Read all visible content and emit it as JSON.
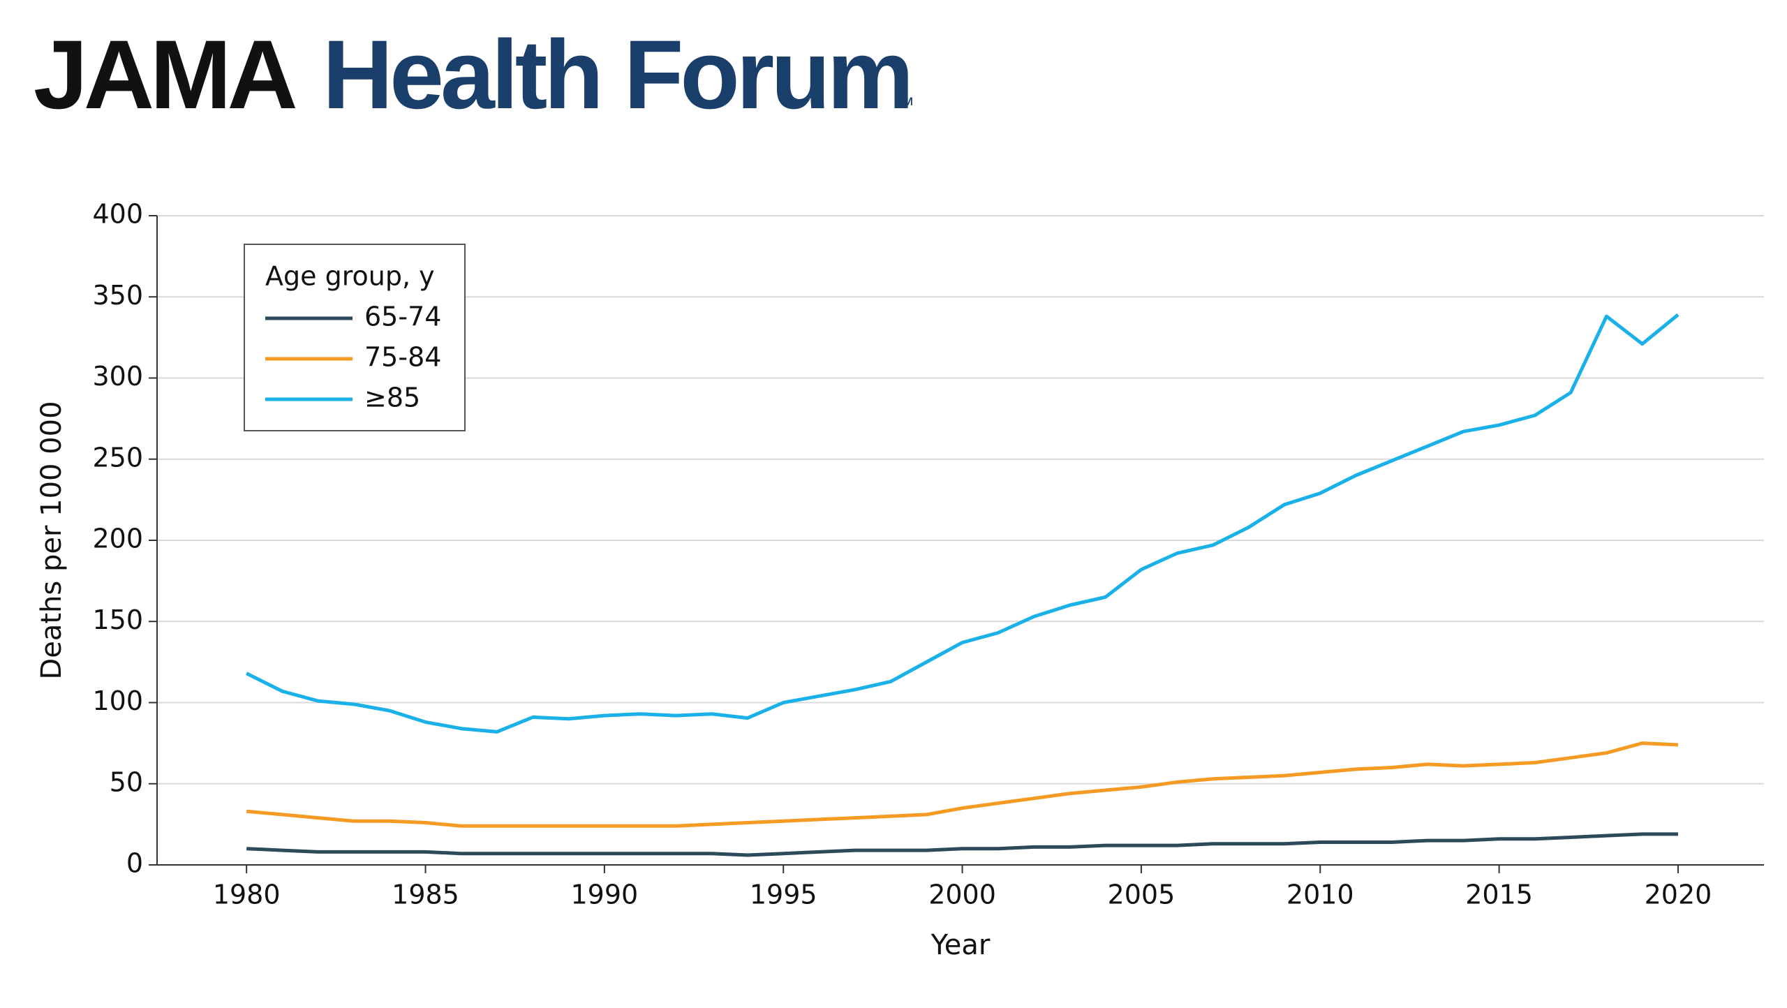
{
  "header": {
    "brand": "JAMA",
    "journal": "Health Forum",
    "mark": "™"
  },
  "chart_data": {
    "type": "line",
    "x": [
      1980,
      1981,
      1982,
      1983,
      1984,
      1985,
      1986,
      1987,
      1988,
      1989,
      1990,
      1991,
      1992,
      1993,
      1994,
      1995,
      1996,
      1997,
      1998,
      1999,
      2000,
      2001,
      2002,
      2003,
      2004,
      2005,
      2006,
      2007,
      2008,
      2009,
      2010,
      2011,
      2012,
      2013,
      2014,
      2015,
      2016,
      2017,
      2018,
      2019,
      2020
    ],
    "series": [
      {
        "name": "65-74",
        "color": "#2c4a5a",
        "values": [
          10,
          9,
          8,
          8,
          8,
          8,
          7,
          7,
          7,
          7,
          7,
          7,
          7,
          7,
          6,
          7,
          8,
          9,
          9,
          9,
          10,
          10,
          11,
          11,
          12,
          12,
          12,
          13,
          13,
          13,
          14,
          14,
          14,
          15,
          15,
          16,
          16,
          17,
          18,
          19,
          19
        ]
      },
      {
        "name": "75-84",
        "color": "#f59a23",
        "values": [
          33,
          31,
          29,
          27,
          27,
          26,
          24,
          24,
          24,
          24,
          24,
          24,
          24,
          25,
          26,
          27,
          28,
          29,
          30,
          31,
          35,
          38,
          41,
          44,
          46,
          48,
          51,
          53,
          54,
          55,
          57,
          59,
          60,
          62,
          61,
          62,
          63,
          66,
          69,
          75,
          74
        ]
      },
      {
        "name": "≥85",
        "color": "#1ab0e8",
        "values": [
          118,
          107,
          101,
          99,
          95,
          88,
          84,
          82,
          91,
          90,
          92,
          93,
          92,
          93,
          90.5,
          100,
          104,
          108,
          113,
          125,
          137,
          143,
          153,
          160,
          165,
          182,
          192,
          197,
          208,
          222,
          229,
          240,
          249,
          258,
          267,
          271,
          277,
          291,
          338,
          321,
          339
        ]
      }
    ],
    "legend_title": "Age group, y",
    "legend": "upper left",
    "xlabel": "Year",
    "ylabel": "Deaths per 100 000",
    "xlim": [
      1977.5,
      2022.4
    ],
    "xticks": [
      1980,
      1985,
      1990,
      1995,
      2000,
      2005,
      2010,
      2015,
      2020
    ],
    "ylim": [
      0,
      400
    ],
    "yticks": [
      0,
      50,
      100,
      150,
      200,
      250,
      300,
      350,
      400
    ],
    "grid": true
  }
}
